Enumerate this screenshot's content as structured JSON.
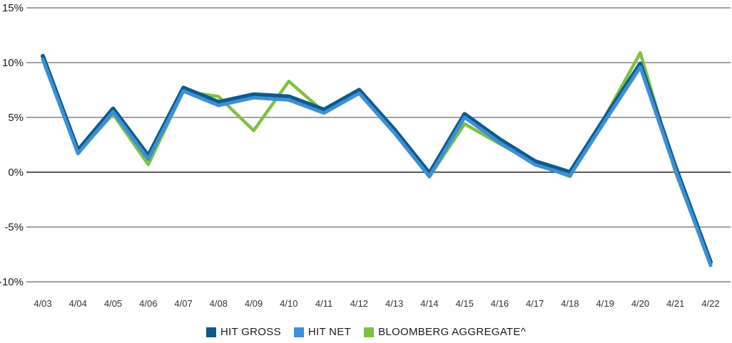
{
  "chart_data": {
    "type": "line",
    "title": "",
    "xlabel": "",
    "ylabel": "",
    "categories": [
      "4/03",
      "4/04",
      "4/05",
      "4/06",
      "4/07",
      "4/08",
      "4/09",
      "4/10",
      "4/11",
      "4/12",
      "4/13",
      "4/14",
      "4/15",
      "4/16",
      "4/17",
      "4/18",
      "4/19",
      "4/20",
      "4/21",
      "4/22"
    ],
    "y_ticks": [
      15,
      10,
      5,
      0,
      -5,
      -10
    ],
    "y_tick_labels": [
      "15%",
      "10%",
      "5%",
      "0%",
      "-5%",
      "-10%"
    ],
    "ylim": [
      -10,
      15
    ],
    "grid": true,
    "legend_position": "bottom-center",
    "series": [
      {
        "name": "BLOOMBERG AGGREGATE^",
        "color": "#7dc142",
        "values": [
          10.3,
          1.8,
          5.3,
          0.7,
          7.4,
          6.9,
          3.8,
          8.3,
          5.5,
          7.3,
          3.7,
          -0.4,
          4.4,
          2.6,
          0.8,
          -0.4,
          5.1,
          10.9,
          0.0,
          -8.4
        ]
      },
      {
        "name": "HIT GROSS",
        "color": "#0e5a8a",
        "values": [
          10.6,
          2.0,
          5.8,
          1.5,
          7.7,
          6.4,
          7.1,
          6.9,
          5.7,
          7.5,
          3.9,
          -0.1,
          5.3,
          3.0,
          1.0,
          0.0,
          5.0,
          9.9,
          0.5,
          -8.2
        ]
      },
      {
        "name": "HIT NET",
        "color": "#3d8fd6",
        "values": [
          10.3,
          1.7,
          5.5,
          1.2,
          7.4,
          6.1,
          6.8,
          6.6,
          5.4,
          7.2,
          3.6,
          -0.4,
          5.0,
          2.7,
          0.7,
          -0.3,
          4.7,
          9.6,
          0.2,
          -8.5
        ]
      }
    ],
    "legend": [
      {
        "label": "HIT GROSS",
        "color": "#0e5a8a"
      },
      {
        "label": "HIT NET",
        "color": "#3d8fd6"
      },
      {
        "label": "BLOOMBERG AGGREGATE^",
        "color": "#7dc142"
      }
    ]
  }
}
